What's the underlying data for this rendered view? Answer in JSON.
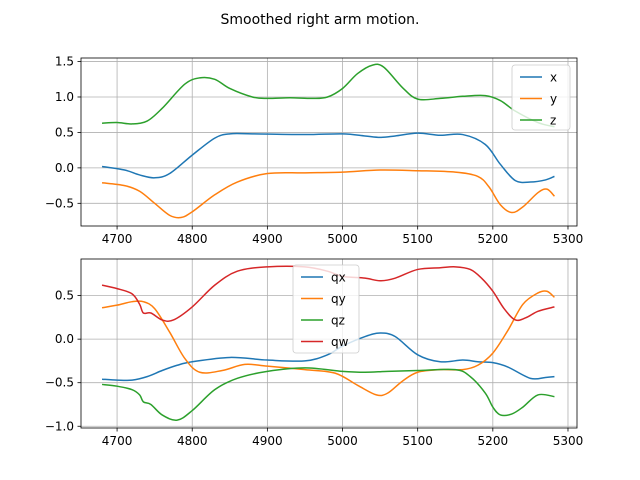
{
  "figure": {
    "title": "Smoothed right arm motion."
  },
  "chart_data": [
    {
      "type": "line",
      "title": "",
      "xlabel": "",
      "ylabel": "",
      "xlim": [
        4652,
        5312
      ],
      "ylim": [
        -0.82,
        1.55
      ],
      "xticks": [
        4700,
        4800,
        4900,
        5000,
        5100,
        5200,
        5300
      ],
      "yticks": [
        -0.5,
        0.0,
        0.5,
        1.0,
        1.5
      ],
      "grid": true,
      "legend": "upper right",
      "series": [
        {
          "name": "x",
          "color": "#1f77b4",
          "x": [
            4680,
            4710,
            4730,
            4750,
            4770,
            4800,
            4830,
            4850,
            4880,
            4950,
            5000,
            5030,
            5050,
            5070,
            5100,
            5130,
            5160,
            5190,
            5210,
            5230,
            5250,
            5270,
            5282
          ],
          "y": [
            0.02,
            -0.03,
            -0.1,
            -0.14,
            -0.08,
            0.18,
            0.42,
            0.48,
            0.48,
            0.47,
            0.48,
            0.45,
            0.43,
            0.45,
            0.49,
            0.46,
            0.47,
            0.33,
            0.05,
            -0.18,
            -0.2,
            -0.17,
            -0.12
          ]
        },
        {
          "name": "y",
          "color": "#ff7f0e",
          "x": [
            4680,
            4710,
            4730,
            4750,
            4770,
            4785,
            4800,
            4830,
            4860,
            4900,
            4950,
            5000,
            5050,
            5100,
            5150,
            5180,
            5195,
            5210,
            5225,
            5240,
            5260,
            5272,
            5282
          ],
          "y": [
            -0.21,
            -0.25,
            -0.33,
            -0.5,
            -0.67,
            -0.7,
            -0.62,
            -0.38,
            -0.2,
            -0.08,
            -0.07,
            -0.06,
            -0.03,
            -0.04,
            -0.06,
            -0.12,
            -0.27,
            -0.52,
            -0.63,
            -0.55,
            -0.35,
            -0.3,
            -0.4
          ]
        },
        {
          "name": "z",
          "color": "#2ca02c",
          "x": [
            4680,
            4700,
            4720,
            4740,
            4760,
            4790,
            4810,
            4830,
            4850,
            4880,
            4900,
            4930,
            4960,
            4980,
            5000,
            5020,
            5040,
            5055,
            5080,
            5100,
            5130,
            5160,
            5190,
            5210,
            5230,
            5260,
            5282
          ],
          "y": [
            0.63,
            0.64,
            0.62,
            0.66,
            0.84,
            1.18,
            1.27,
            1.25,
            1.12,
            1.0,
            0.98,
            0.99,
            0.98,
            1.0,
            1.12,
            1.33,
            1.45,
            1.42,
            1.13,
            0.97,
            0.98,
            1.01,
            1.02,
            0.95,
            0.8,
            0.64,
            0.58
          ]
        }
      ]
    },
    {
      "type": "line",
      "title": "",
      "xlabel": "",
      "ylabel": "",
      "xlim": [
        4652,
        5312
      ],
      "ylim": [
        -1.02,
        0.92
      ],
      "xticks": [
        4700,
        4800,
        4900,
        5000,
        5100,
        5200,
        5300
      ],
      "yticks": [
        -1.0,
        -0.5,
        0.0,
        0.5
      ],
      "grid": true,
      "legend": "upper center",
      "series": [
        {
          "name": "qx",
          "color": "#1f77b4",
          "x": [
            4680,
            4700,
            4720,
            4740,
            4760,
            4780,
            4800,
            4850,
            4900,
            4950,
            4980,
            5000,
            5030,
            5050,
            5070,
            5100,
            5130,
            5160,
            5180,
            5200,
            5220,
            5250,
            5270,
            5282
          ],
          "y": [
            -0.46,
            -0.47,
            -0.47,
            -0.43,
            -0.36,
            -0.3,
            -0.26,
            -0.21,
            -0.24,
            -0.25,
            -0.18,
            -0.08,
            0.03,
            0.07,
            0.03,
            -0.18,
            -0.26,
            -0.24,
            -0.26,
            -0.27,
            -0.32,
            -0.45,
            -0.44,
            -0.43
          ]
        },
        {
          "name": "qy",
          "color": "#ff7f0e",
          "x": [
            4680,
            4700,
            4720,
            4735,
            4750,
            4770,
            4790,
            4810,
            4840,
            4870,
            4900,
            4950,
            4990,
            5020,
            5045,
            5060,
            5080,
            5100,
            5130,
            5160,
            5180,
            5200,
            5220,
            5240,
            5260,
            5272,
            5282
          ],
          "y": [
            0.36,
            0.39,
            0.43,
            0.43,
            0.35,
            0.08,
            -0.22,
            -0.38,
            -0.36,
            -0.29,
            -0.31,
            -0.35,
            -0.39,
            -0.53,
            -0.64,
            -0.62,
            -0.48,
            -0.38,
            -0.35,
            -0.35,
            -0.3,
            -0.16,
            0.1,
            0.4,
            0.53,
            0.55,
            0.48
          ]
        },
        {
          "name": "qz",
          "color": "#2ca02c",
          "x": [
            4680,
            4700,
            4720,
            4730,
            4735,
            4745,
            4760,
            4780,
            4800,
            4830,
            4860,
            4900,
            4950,
            5000,
            5030,
            5060,
            5100,
            5150,
            5170,
            5190,
            5200,
            5210,
            5225,
            5240,
            5260,
            5282
          ],
          "y": [
            -0.52,
            -0.54,
            -0.58,
            -0.64,
            -0.72,
            -0.75,
            -0.87,
            -0.93,
            -0.82,
            -0.58,
            -0.45,
            -0.37,
            -0.33,
            -0.37,
            -0.38,
            -0.37,
            -0.36,
            -0.35,
            -0.43,
            -0.62,
            -0.78,
            -0.87,
            -0.86,
            -0.78,
            -0.64,
            -0.66
          ]
        },
        {
          "name": "qw",
          "color": "#d62728",
          "x": [
            4680,
            4700,
            4720,
            4730,
            4735,
            4745,
            4760,
            4775,
            4800,
            4830,
            4860,
            4900,
            4950,
            4980,
            5000,
            5030,
            5050,
            5070,
            5100,
            5130,
            5150,
            5170,
            5185,
            5200,
            5215,
            5230,
            5245,
            5260,
            5282
          ],
          "y": [
            0.62,
            0.58,
            0.52,
            0.4,
            0.3,
            0.3,
            0.22,
            0.22,
            0.37,
            0.62,
            0.78,
            0.83,
            0.83,
            0.78,
            0.72,
            0.7,
            0.67,
            0.7,
            0.8,
            0.82,
            0.83,
            0.8,
            0.7,
            0.55,
            0.35,
            0.22,
            0.25,
            0.32,
            0.37
          ]
        }
      ]
    }
  ]
}
